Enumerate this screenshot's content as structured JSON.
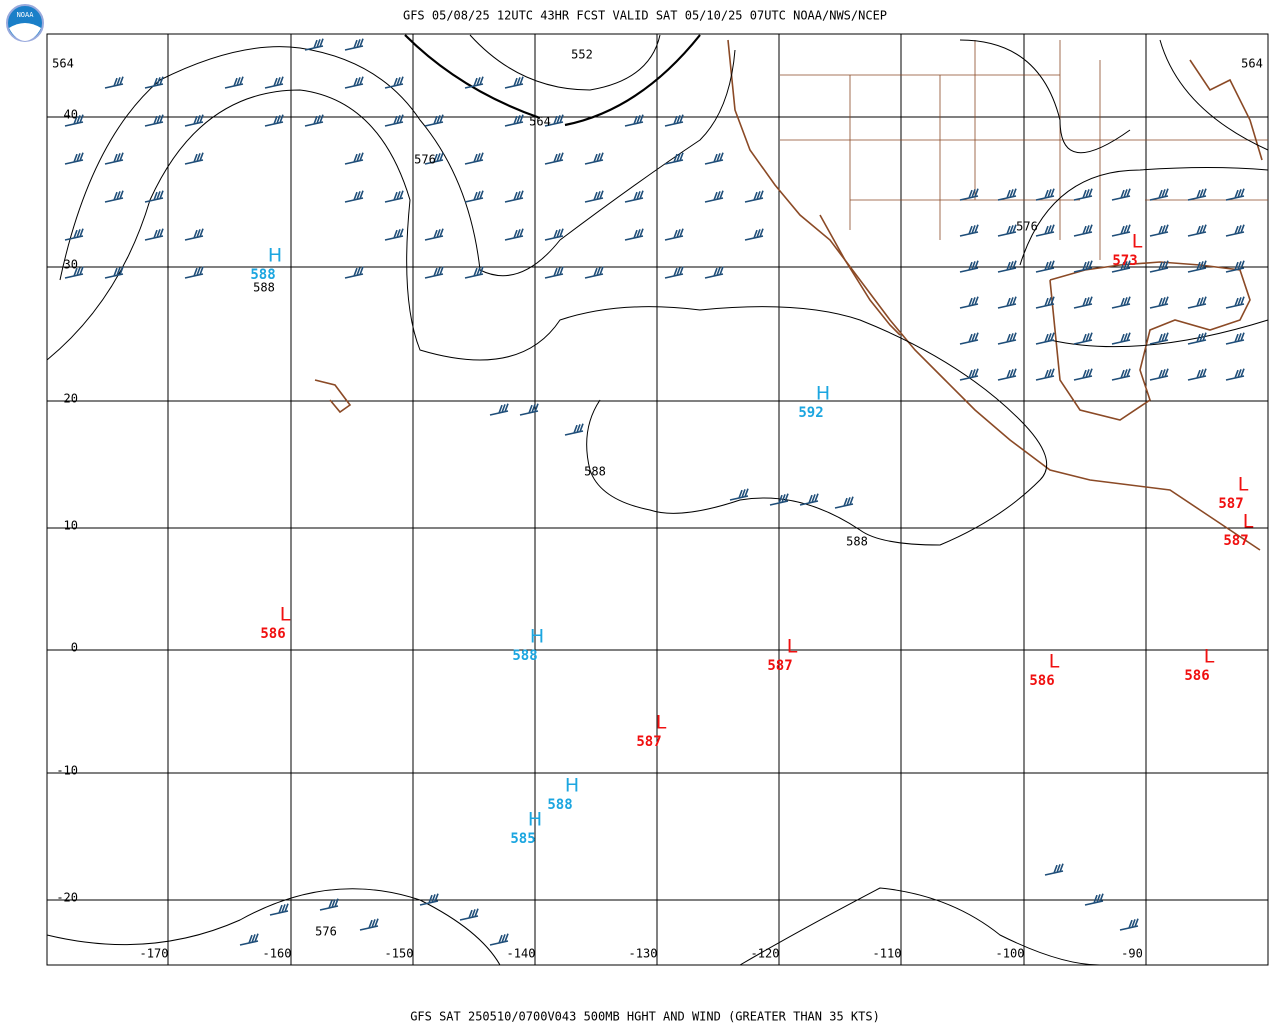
{
  "header": {
    "title": "GFS 05/08/25 12UTC 43HR FCST VALID SAT 05/10/25 07UTC NOAA/NWS/NCEP",
    "logo": "NOAA"
  },
  "footer": {
    "caption": "GFS SAT 250510/0700V043 500MB HGHT AND WIND (GREATER THAN 35 KTS)"
  },
  "latitude_labels": [
    "40",
    "30",
    "20",
    "10",
    "0",
    "-10",
    "-20"
  ],
  "longitude_labels": [
    "-170",
    "-160",
    "-150",
    "-140",
    "-130",
    "-120",
    "-110",
    "-100",
    "-90"
  ],
  "contour_labels": [
    "564",
    "552",
    "564",
    "576",
    "588",
    "588",
    "588",
    "576",
    "576",
    "564"
  ],
  "centers": [
    {
      "symbol": "H",
      "value": "588"
    },
    {
      "symbol": "H",
      "value": "592"
    },
    {
      "symbol": "L",
      "value": "573"
    },
    {
      "symbol": "L",
      "value": "587"
    },
    {
      "symbol": "L",
      "value": "587"
    },
    {
      "symbol": "L",
      "value": "586"
    },
    {
      "symbol": "H",
      "value": "588"
    },
    {
      "symbol": "L",
      "value": "587"
    },
    {
      "symbol": "L",
      "value": "586"
    },
    {
      "symbol": "L",
      "value": "586"
    },
    {
      "symbol": "L",
      "value": "587"
    },
    {
      "symbol": "H",
      "value": "588"
    },
    {
      "symbol": "H",
      "value": "585"
    }
  ]
}
